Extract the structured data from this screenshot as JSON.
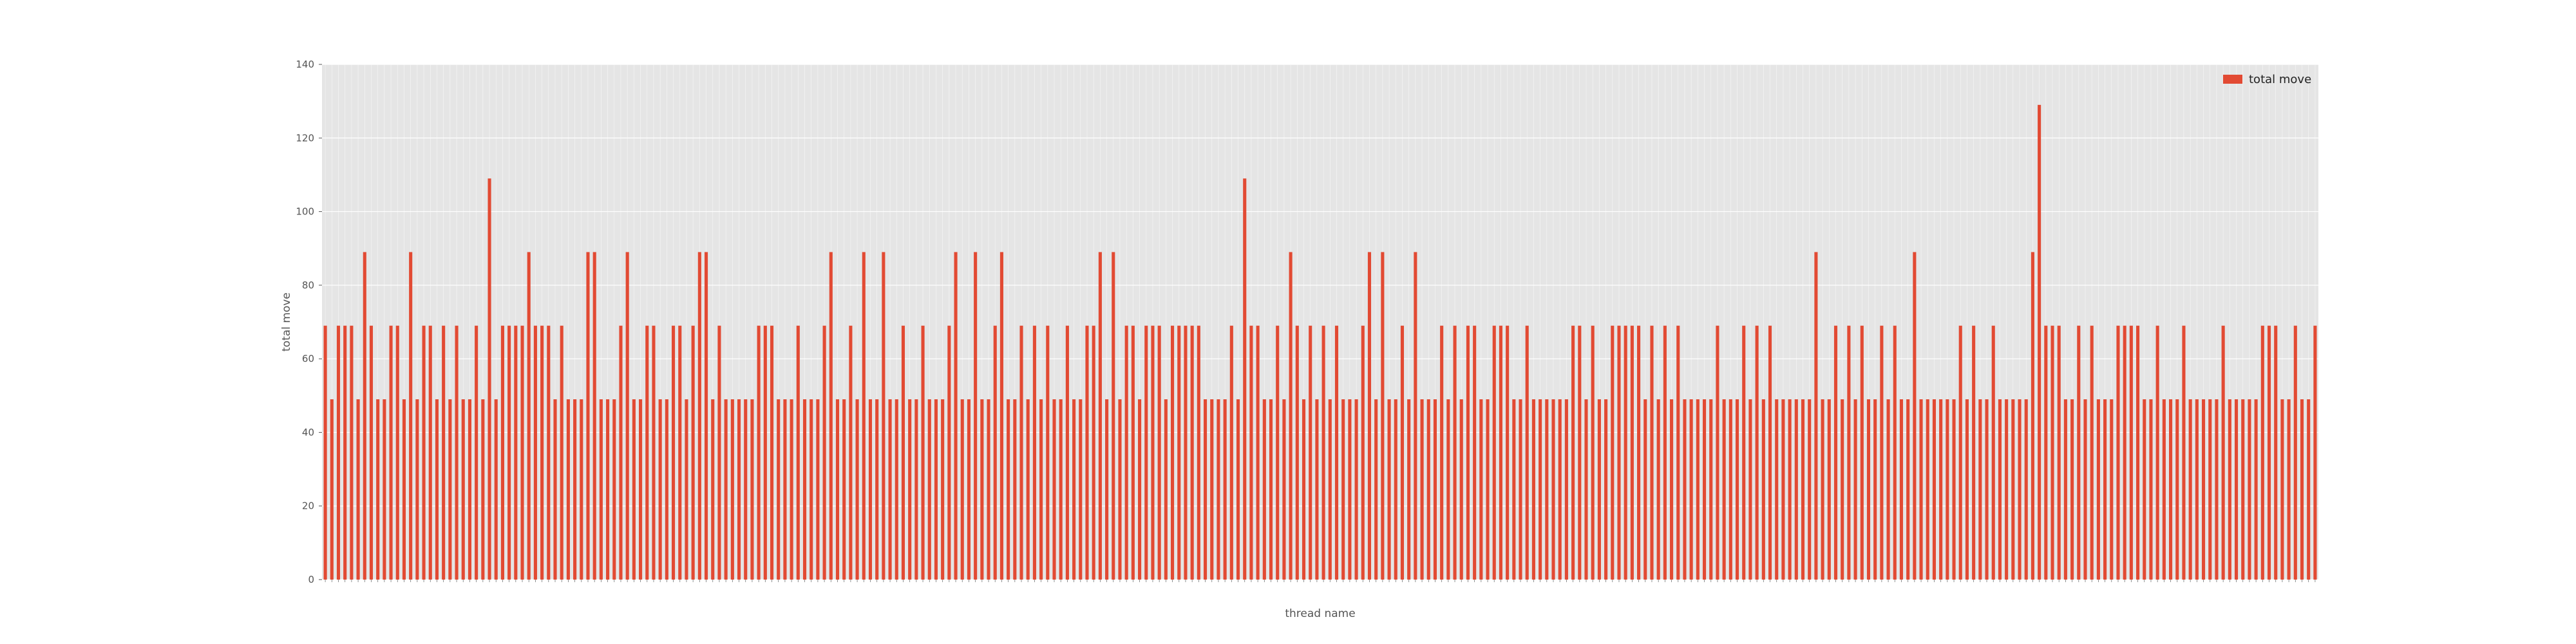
{
  "chart_data": {
    "type": "bar",
    "xlabel": "thread name",
    "ylabel": "total move",
    "ylim": [
      0,
      140
    ],
    "yticks": [
      0,
      20,
      40,
      60,
      80,
      100,
      120,
      140
    ],
    "grid": true,
    "legend_position": "top-right",
    "series": [
      {
        "name": "total move",
        "color": "#e24a33",
        "values": [
          69,
          49,
          69,
          69,
          69,
          49,
          89,
          69,
          49,
          49,
          69,
          69,
          49,
          89,
          49,
          69,
          69,
          49,
          69,
          49,
          69,
          49,
          49,
          69,
          49,
          109,
          49,
          69,
          69,
          69,
          69,
          89,
          69,
          69,
          69,
          49,
          69,
          49,
          49,
          49,
          89,
          89,
          49,
          49,
          49,
          69,
          89,
          49,
          49,
          69,
          69,
          49,
          49,
          69,
          69,
          49,
          69,
          89,
          89,
          49,
          69,
          49,
          49,
          49,
          49,
          49,
          69,
          69,
          69,
          49,
          49,
          49,
          69,
          49,
          49,
          49,
          69,
          89,
          49,
          49,
          69,
          49,
          89,
          49,
          49,
          89,
          49,
          49,
          69,
          49,
          49,
          69,
          49,
          49,
          49,
          69,
          89,
          49,
          49,
          89,
          49,
          49,
          69,
          89,
          49,
          49,
          69,
          49,
          69,
          49,
          69,
          49,
          49,
          69,
          49,
          49,
          69,
          69,
          89,
          49,
          89,
          49,
          69,
          69,
          49,
          69,
          69,
          69,
          49,
          69,
          69,
          69,
          69,
          69,
          49,
          49,
          49,
          49,
          69,
          49,
          109,
          69,
          69,
          49,
          49,
          69,
          49,
          89,
          69,
          49,
          69,
          49,
          69,
          49,
          69,
          49,
          49,
          49,
          69,
          89,
          49,
          89,
          49,
          49,
          69,
          49,
          89,
          49,
          49,
          49,
          69,
          49,
          69,
          49,
          69,
          69,
          49,
          49,
          69,
          69,
          69,
          49,
          49,
          69,
          49,
          49,
          49,
          49,
          49,
          49,
          69,
          69,
          49,
          69,
          49,
          49,
          69,
          69,
          69,
          69,
          69,
          49,
          69,
          49,
          69,
          49,
          69,
          49,
          49,
          49,
          49,
          49,
          69,
          49,
          49,
          49,
          69,
          49,
          69,
          49,
          69,
          49,
          49,
          49,
          49,
          49,
          49,
          89,
          49,
          49,
          69,
          49,
          69,
          49,
          69,
          49,
          49,
          69,
          49,
          69,
          49,
          49,
          89,
          49,
          49,
          49,
          49,
          49,
          49,
          69,
          49,
          69,
          49,
          49,
          69,
          49,
          49,
          49,
          49,
          49,
          89,
          129,
          69,
          69,
          69,
          49,
          49,
          69,
          49,
          69,
          49,
          49,
          49,
          69,
          69,
          69,
          69,
          49,
          49,
          69,
          49,
          49,
          49,
          69,
          49,
          49,
          49,
          49,
          49,
          69,
          49,
          49,
          49,
          49,
          49,
          69,
          69,
          69,
          49,
          49,
          69,
          49,
          49,
          69
        ]
      }
    ]
  }
}
